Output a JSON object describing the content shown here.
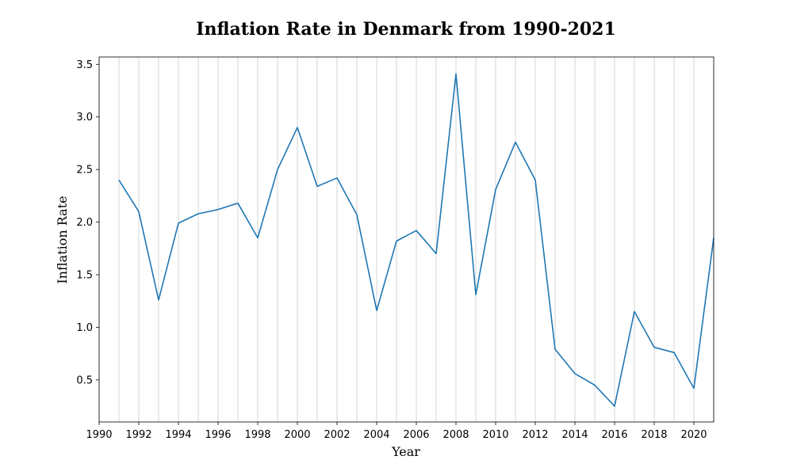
{
  "chart_data": {
    "type": "line",
    "title": "Inflation Rate in Denmark from 1990-2021",
    "xlabel": "Year",
    "ylabel": "Inflation Rate",
    "xlim": [
      1990,
      2021
    ],
    "ylim": [
      0.1,
      3.57
    ],
    "grid": "vertical",
    "xticks": [
      1990,
      1992,
      1994,
      1996,
      1998,
      2000,
      2002,
      2004,
      2006,
      2008,
      2010,
      2012,
      2014,
      2016,
      2018,
      2020
    ],
    "yticks": [
      0.5,
      1.0,
      1.5,
      2.0,
      2.5,
      3.0,
      3.5
    ],
    "ytick_labels": [
      "0.5",
      "1.0",
      "1.5",
      "2.0",
      "2.5",
      "3.0",
      "3.5"
    ],
    "series": [
      {
        "color": "#1f77b4",
        "x": [
          1991,
          1992,
          1993,
          1994,
          1995,
          1996,
          1997,
          1998,
          1999,
          2000,
          2001,
          2002,
          2003,
          2004,
          2005,
          2006,
          2007,
          2008,
          2009,
          2010,
          2011,
          2012,
          2013,
          2014,
          2015,
          2016,
          2017,
          2018,
          2019,
          2020,
          2021
        ],
        "values": [
          2.4,
          2.1,
          1.26,
          1.99,
          2.08,
          2.12,
          2.18,
          1.85,
          2.5,
          2.9,
          2.34,
          2.42,
          2.07,
          1.16,
          1.82,
          1.92,
          1.7,
          3.41,
          1.31,
          2.31,
          2.76,
          2.4,
          0.79,
          0.56,
          0.45,
          0.25,
          1.15,
          0.81,
          0.76,
          0.42,
          1.85
        ]
      }
    ]
  }
}
